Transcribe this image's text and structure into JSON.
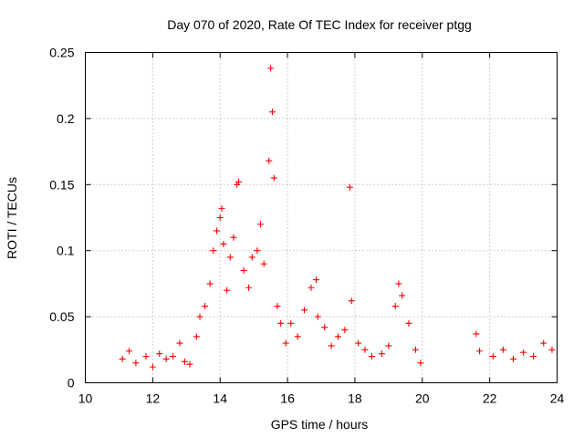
{
  "chart_data": {
    "type": "scatter",
    "title": "Day 070 of 2020, Rate Of TEC Index for receiver ptgg",
    "xlabel": "GPS time / hours",
    "ylabel": "ROTI / TECUs",
    "xlim": [
      10,
      24
    ],
    "ylim": [
      0,
      0.25
    ],
    "x_ticks": [
      "10",
      "12",
      "14",
      "16",
      "18",
      "20",
      "22",
      "24"
    ],
    "y_ticks": [
      "0",
      "0.05",
      "0.1",
      "0.15",
      "0.2",
      "0.25"
    ],
    "grid": true,
    "marker": "+",
    "color": "#ff0000",
    "series": [
      {
        "x": [
          11.1,
          11.3,
          11.5,
          11.8,
          12.0,
          12.2,
          12.4,
          12.6,
          12.8,
          12.95,
          13.1,
          13.3,
          13.4,
          13.55,
          13.7,
          13.8,
          13.9,
          14.0,
          14.05,
          14.1,
          14.2,
          14.3,
          14.4,
          14.5,
          14.55,
          14.7,
          14.85,
          14.95,
          15.1,
          15.2,
          15.3,
          15.45,
          15.5,
          15.55,
          15.6,
          15.7,
          15.8,
          15.95,
          16.1,
          16.3,
          16.5,
          16.7,
          16.85,
          16.9,
          17.1,
          17.3,
          17.5,
          17.7,
          17.85,
          17.9,
          18.1,
          18.3,
          18.5,
          18.8,
          19.0,
          19.2,
          19.3,
          19.4,
          19.6,
          19.8,
          19.95,
          21.6,
          21.7,
          22.1,
          22.4,
          22.7,
          23.0,
          23.3,
          23.6,
          23.85
        ],
        "y": [
          0.018,
          0.024,
          0.015,
          0.02,
          0.012,
          0.022,
          0.018,
          0.02,
          0.03,
          0.016,
          0.014,
          0.035,
          0.05,
          0.058,
          0.075,
          0.1,
          0.115,
          0.125,
          0.132,
          0.105,
          0.07,
          0.095,
          0.11,
          0.15,
          0.152,
          0.085,
          0.072,
          0.095,
          0.1,
          0.12,
          0.09,
          0.168,
          0.238,
          0.205,
          0.155,
          0.058,
          0.045,
          0.03,
          0.045,
          0.035,
          0.055,
          0.072,
          0.078,
          0.05,
          0.042,
          0.028,
          0.035,
          0.04,
          0.148,
          0.062,
          0.03,
          0.025,
          0.02,
          0.022,
          0.028,
          0.058,
          0.075,
          0.066,
          0.045,
          0.025,
          0.015,
          0.037,
          0.024,
          0.02,
          0.025,
          0.018,
          0.023,
          0.02,
          0.03,
          0.025
        ]
      }
    ]
  }
}
